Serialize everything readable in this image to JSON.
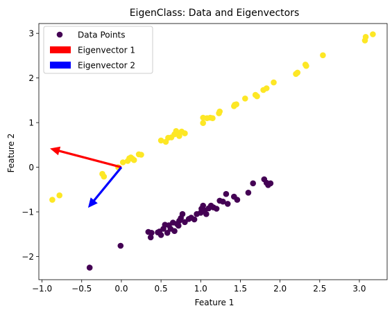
{
  "chart_data": {
    "type": "scatter",
    "title": "EigenClass: Data and Eigenvectors",
    "xlabel": "Feature 1",
    "ylabel": "Feature 2",
    "xlim": [
      -1.04,
      3.35
    ],
    "ylim": [
      -2.52,
      3.22
    ],
    "xticks": [
      -1.0,
      -0.5,
      0.0,
      0.5,
      1.0,
      1.5,
      2.0,
      2.5,
      3.0
    ],
    "xtick_labels": [
      "−1.0",
      "−0.5",
      "0.0",
      "0.5",
      "1.0",
      "1.5",
      "2.0",
      "2.5",
      "3.0"
    ],
    "yticks": [
      -2,
      -1,
      0,
      1,
      2,
      3
    ],
    "ytick_labels": [
      "−2",
      "−1",
      "0",
      "1",
      "2",
      "3"
    ],
    "grid": false,
    "legend_placement": "top-left",
    "legend": [
      {
        "label": "Data Points",
        "marker": "circle",
        "color": "#440154"
      },
      {
        "label": "Eigenvector 1",
        "marker": "rect",
        "color": "#ff0000"
      },
      {
        "label": "Eigenvector 2",
        "marker": "rect",
        "color": "#0000ff"
      }
    ],
    "colors": {
      "class0": "#440154",
      "class1": "#fde725",
      "eigvec1": "#ff0000",
      "eigvec2": "#0000ff"
    },
    "series": [
      {
        "name": "Data Points",
        "color_class": "class1",
        "points": [
          [
            -0.87,
            -0.73
          ],
          [
            -0.78,
            -0.63
          ],
          [
            -0.24,
            -0.15
          ],
          [
            -0.22,
            -0.21
          ],
          [
            -0.04,
            0.0
          ],
          [
            0.02,
            0.11
          ],
          [
            0.08,
            0.14
          ],
          [
            0.1,
            0.2
          ],
          [
            0.12,
            0.22
          ],
          [
            0.14,
            0.19
          ],
          [
            0.16,
            0.16
          ],
          [
            0.22,
            0.29
          ],
          [
            0.25,
            0.28
          ],
          [
            0.5,
            0.6
          ],
          [
            0.56,
            0.57
          ],
          [
            0.59,
            0.66
          ],
          [
            0.63,
            0.67
          ],
          [
            0.67,
            0.74
          ],
          [
            0.69,
            0.81
          ],
          [
            0.71,
            0.75
          ],
          [
            0.73,
            0.7
          ],
          [
            0.76,
            0.8
          ],
          [
            0.8,
            0.76
          ],
          [
            1.03,
            0.99
          ],
          [
            1.03,
            1.11
          ],
          [
            1.08,
            1.1
          ],
          [
            1.12,
            1.11
          ],
          [
            1.15,
            1.1
          ],
          [
            1.23,
            1.21
          ],
          [
            1.24,
            1.25
          ],
          [
            1.42,
            1.37
          ],
          [
            1.43,
            1.4
          ],
          [
            1.45,
            1.41
          ],
          [
            1.56,
            1.54
          ],
          [
            1.69,
            1.62
          ],
          [
            1.71,
            1.59
          ],
          [
            1.79,
            1.73
          ],
          [
            1.83,
            1.77
          ],
          [
            1.92,
            1.9
          ],
          [
            2.2,
            2.09
          ],
          [
            2.22,
            2.12
          ],
          [
            2.32,
            2.3
          ],
          [
            2.33,
            2.27
          ],
          [
            2.54,
            2.51
          ],
          [
            3.07,
            2.84
          ],
          [
            3.08,
            2.92
          ],
          [
            3.17,
            2.98
          ]
        ]
      },
      {
        "name": "Data Points",
        "color_class": "class0",
        "points": [
          [
            -0.4,
            -2.25
          ],
          [
            -0.01,
            -1.76
          ],
          [
            0.34,
            -1.45
          ],
          [
            0.37,
            -1.57
          ],
          [
            0.38,
            -1.47
          ],
          [
            0.46,
            -1.46
          ],
          [
            0.48,
            -1.44
          ],
          [
            0.5,
            -1.52
          ],
          [
            0.53,
            -1.38
          ],
          [
            0.55,
            -1.29
          ],
          [
            0.58,
            -1.47
          ],
          [
            0.6,
            -1.3
          ],
          [
            0.62,
            -1.38
          ],
          [
            0.65,
            -1.24
          ],
          [
            0.67,
            -1.43
          ],
          [
            0.7,
            -1.27
          ],
          [
            0.72,
            -1.31
          ],
          [
            0.73,
            -1.2
          ],
          [
            0.75,
            -1.14
          ],
          [
            0.77,
            -1.05
          ],
          [
            0.8,
            -1.23
          ],
          [
            0.85,
            -1.16
          ],
          [
            0.88,
            -1.13
          ],
          [
            0.92,
            -1.17
          ],
          [
            0.95,
            -1.05
          ],
          [
            1.0,
            -1.02
          ],
          [
            1.01,
            -0.93
          ],
          [
            1.03,
            -0.86
          ],
          [
            1.05,
            -0.97
          ],
          [
            1.07,
            -1.05
          ],
          [
            1.1,
            -0.92
          ],
          [
            1.13,
            -0.86
          ],
          [
            1.16,
            -0.9
          ],
          [
            1.2,
            -0.93
          ],
          [
            1.24,
            -0.75
          ],
          [
            1.28,
            -0.77
          ],
          [
            1.32,
            -0.6
          ],
          [
            1.34,
            -0.82
          ],
          [
            1.42,
            -0.66
          ],
          [
            1.46,
            -0.73
          ],
          [
            1.6,
            -0.57
          ],
          [
            1.66,
            -0.36
          ],
          [
            1.8,
            -0.27
          ],
          [
            1.83,
            -0.35
          ],
          [
            1.85,
            -0.4
          ],
          [
            1.88,
            -0.36
          ]
        ]
      }
    ],
    "arrows": [
      {
        "name": "Eigenvector 1",
        "color_class": "eigvec1",
        "from": [
          0,
          0
        ],
        "to": [
          -0.9,
          0.42
        ]
      },
      {
        "name": "Eigenvector 2",
        "color_class": "eigvec2",
        "from": [
          0,
          0
        ],
        "to": [
          -0.42,
          -0.91
        ]
      }
    ]
  }
}
